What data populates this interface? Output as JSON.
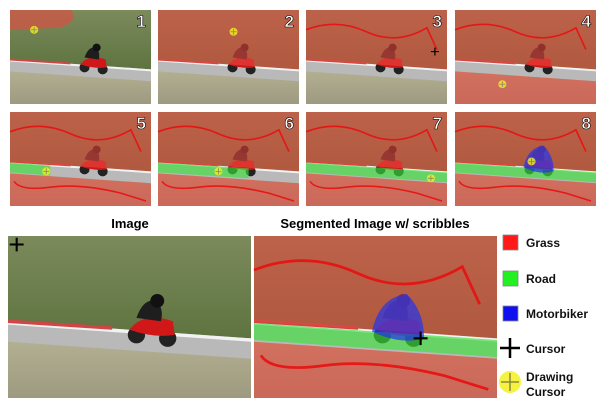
{
  "panels": [
    "1",
    "2",
    "3",
    "4",
    "5",
    "6",
    "7",
    "8"
  ],
  "image_title": "Image",
  "segmented_title": "Segmented Image w/ scribbles",
  "legend": [
    "Grass",
    "Road",
    "Motorbiker",
    "Cursor",
    "Drawing Cursor"
  ]
}
